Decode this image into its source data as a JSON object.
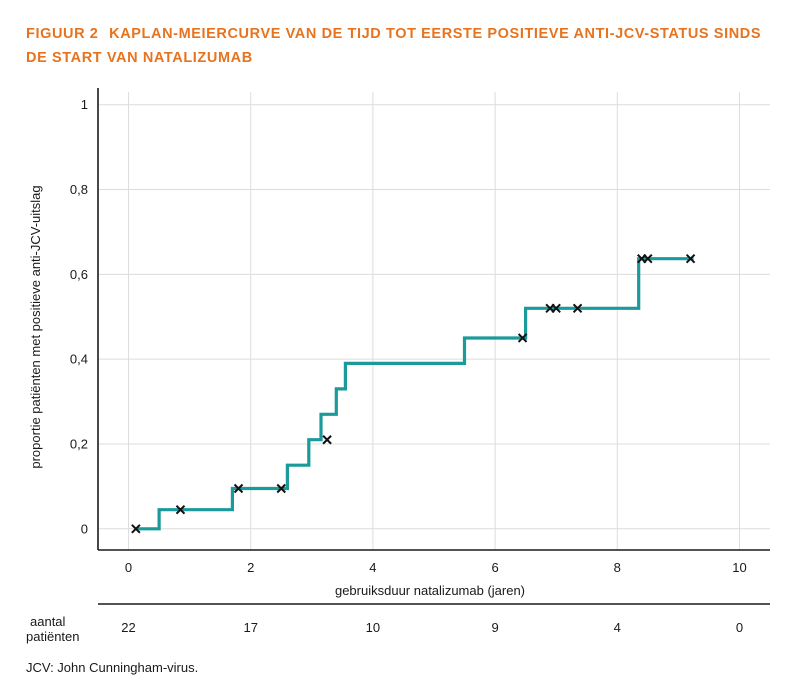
{
  "figure": {
    "number": "FIGUUR 2",
    "title": "KAPLAN-MEIERCURVE VAN DE TIJD TOT EERSTE POSITIEVE ANTI-JCV-STATUS SINDS DE START VAN NATALIZUMAB"
  },
  "footnote": "JCV: John Cunningham-virus.",
  "colors": {
    "title": "#e8731e",
    "curve": "#1a9a9a",
    "grid": "#dcdcdc",
    "axis": "#1a1a1a"
  },
  "chart_data": {
    "type": "line",
    "subtype": "kaplan-meier step curve with censoring marks",
    "title": "",
    "xlabel": "gebruiksduur natalizumab (jaren)",
    "ylabel": "proportie patiënten met positieve anti-JCV-uitslag",
    "xlim": [
      -0.5,
      10.5
    ],
    "ylim": [
      -0.05,
      1.03
    ],
    "grid": true,
    "x_ticks": [
      0,
      2,
      4,
      6,
      8,
      10
    ],
    "x_tick_labels": [
      "0",
      "2",
      "4",
      "6",
      "8",
      "10"
    ],
    "y_ticks": [
      0,
      0.2,
      0.4,
      0.6,
      0.8,
      1
    ],
    "y_tick_labels": [
      "0",
      "0,2",
      "0,4",
      "0,6",
      "0,8",
      "1"
    ],
    "step_points": [
      [
        0.1,
        0.0
      ],
      [
        0.5,
        0.0
      ],
      [
        0.5,
        0.045
      ],
      [
        1.7,
        0.045
      ],
      [
        1.7,
        0.095
      ],
      [
        2.6,
        0.095
      ],
      [
        2.6,
        0.15
      ],
      [
        2.95,
        0.15
      ],
      [
        2.95,
        0.21
      ],
      [
        3.15,
        0.21
      ],
      [
        3.15,
        0.27
      ],
      [
        3.4,
        0.27
      ],
      [
        3.4,
        0.33
      ],
      [
        3.55,
        0.33
      ],
      [
        3.55,
        0.39
      ],
      [
        5.5,
        0.39
      ],
      [
        5.5,
        0.45
      ],
      [
        6.5,
        0.45
      ],
      [
        6.5,
        0.52
      ],
      [
        8.35,
        0.52
      ],
      [
        8.35,
        0.637
      ],
      [
        9.25,
        0.637
      ]
    ],
    "censored": [
      [
        0.12,
        0.0
      ],
      [
        0.85,
        0.045
      ],
      [
        1.8,
        0.095
      ],
      [
        2.5,
        0.095
      ],
      [
        3.25,
        0.21
      ],
      [
        6.45,
        0.45
      ],
      [
        6.9,
        0.52
      ],
      [
        7.0,
        0.52
      ],
      [
        7.35,
        0.52
      ],
      [
        8.4,
        0.637
      ],
      [
        8.5,
        0.637
      ],
      [
        9.2,
        0.637
      ]
    ],
    "risk_table": {
      "label": [
        "aantal",
        "patiënten"
      ],
      "times": [
        0,
        2,
        4,
        6,
        8,
        10
      ],
      "counts": [
        "22",
        "17",
        "10",
        "9",
        "4",
        "0"
      ]
    }
  }
}
